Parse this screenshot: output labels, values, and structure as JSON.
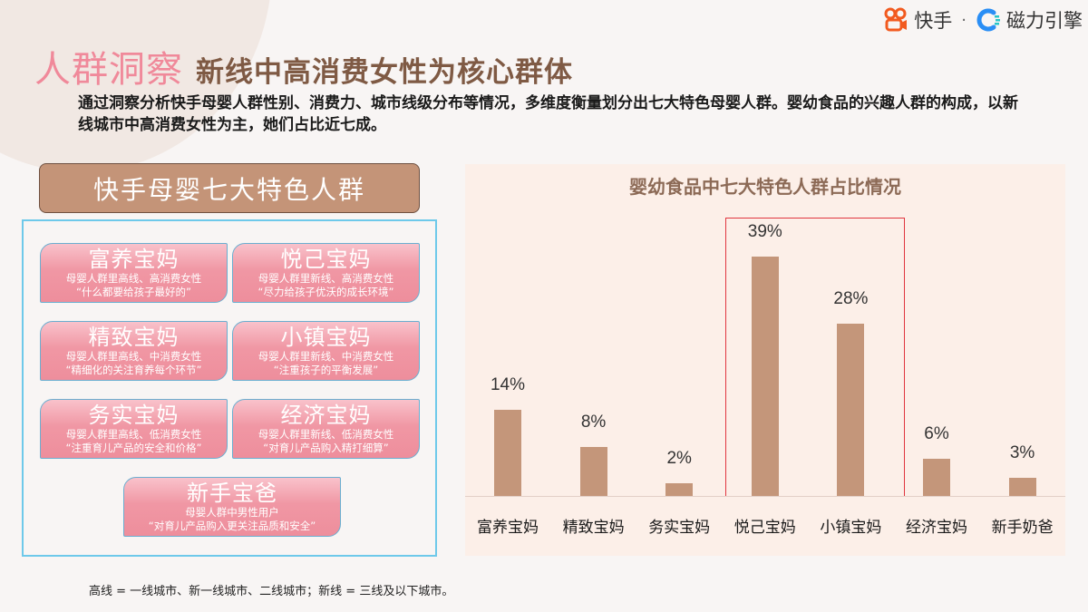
{
  "brand": {
    "kuaishou": "快手",
    "separator": "·",
    "engine": "磁力引擎",
    "colors": {
      "kuaishou": "#f25a1f",
      "engine": "#2a8ef5"
    }
  },
  "header": {
    "title": "人群洞察",
    "subtitle": "新线中高消费女性为核心群体",
    "description": "通过洞察分析快手母婴人群性别、消费力、城市线级分布等情况，多维度衡量划分出七大特色母婴人群。婴幼食品的兴趣人群的构成，以新线城市中高消费女性为主，她们占比近七成。"
  },
  "groups": {
    "title": "快手母婴七大特色人群",
    "items": [
      {
        "name": "富养宝妈",
        "desc": "母婴人群里高线、高消费女性",
        "quote": "“什么都要给孩子最好的”"
      },
      {
        "name": "悦己宝妈",
        "desc": "母婴人群里新线、高消费女性",
        "quote": "“尽力给孩子优沃的成长环境”"
      },
      {
        "name": "精致宝妈",
        "desc": "母婴人群里高线、中消费女性",
        "quote": "“精细化的关注育养每个环节”"
      },
      {
        "name": "小镇宝妈",
        "desc": "母婴人群里新线、中消费女性",
        "quote": "“注重孩子的平衡发展”"
      },
      {
        "name": "务实宝妈",
        "desc": "母婴人群里高线、低消费女性",
        "quote": "“注重育儿产品的安全和价格”"
      },
      {
        "name": "经济宝妈",
        "desc": "母婴人群里新线、低消费女性",
        "quote": "“对育儿产品购入精打细算”"
      },
      {
        "name": "新手宝爸",
        "desc": "母婴人群中男性用户",
        "quote": "“对育儿产品购入更关注品质和安全”"
      }
    ]
  },
  "chart_data": {
    "type": "bar",
    "title": "婴幼食品中七大特色人群占比情况",
    "categories": [
      "富养宝妈",
      "精致宝妈",
      "务实宝妈",
      "悦己宝妈",
      "小镇宝妈",
      "经济宝妈",
      "新手奶爸"
    ],
    "values": [
      14,
      8,
      2,
      39,
      28,
      6,
      3
    ],
    "labels": [
      "14%",
      "8%",
      "2%",
      "39%",
      "28%",
      "6%",
      "3%"
    ],
    "unit": "%",
    "xlabel": "",
    "ylabel": "",
    "ylim": [
      0,
      40
    ],
    "grid": false,
    "legend": null,
    "highlight": [
      "悦己宝妈",
      "小镇宝妈"
    ],
    "bar_color": "#c4967a",
    "highlight_color": "#e0363f"
  },
  "footnote": "高线 = 一线城市、新一线城市、二线城市；新线 = 三线及以下城市。"
}
